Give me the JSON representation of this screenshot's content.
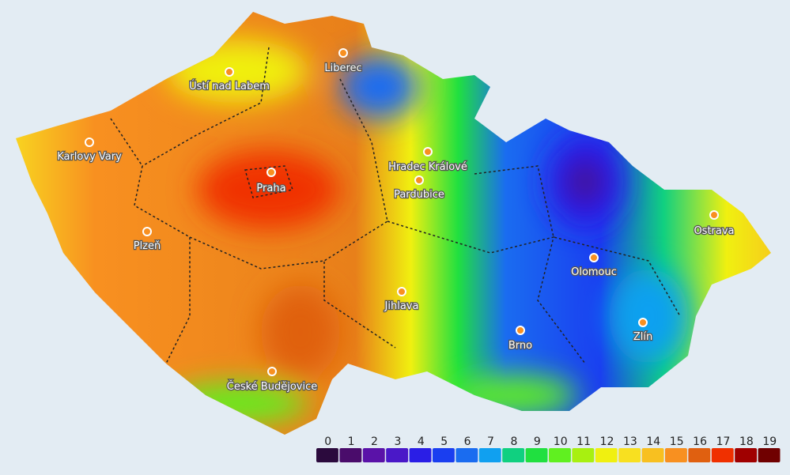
{
  "cities": [
    {
      "name": "Liberec"
    },
    {
      "name": "Ústí nad Labem"
    },
    {
      "name": "Karlovy Vary"
    },
    {
      "name": "Praha"
    },
    {
      "name": "Hradec Králové"
    },
    {
      "name": "Pardubice"
    },
    {
      "name": "Plzeň"
    },
    {
      "name": "Jihlava"
    },
    {
      "name": "Brno"
    },
    {
      "name": "Olomouc"
    },
    {
      "name": "Ostrava"
    },
    {
      "name": "Zlín"
    },
    {
      "name": "České Budějovice"
    }
  ],
  "legend": {
    "items": [
      {
        "value": 0,
        "color": "#2b0a3d"
      },
      {
        "value": 1,
        "color": "#4a0c6b"
      },
      {
        "value": 2,
        "color": "#5a12a8"
      },
      {
        "value": 3,
        "color": "#4a18c8"
      },
      {
        "value": 4,
        "color": "#2a1ee6"
      },
      {
        "value": 5,
        "color": "#1a3ef0"
      },
      {
        "value": 6,
        "color": "#1a6cf0"
      },
      {
        "value": 7,
        "color": "#10a0f0"
      },
      {
        "value": 8,
        "color": "#10d080"
      },
      {
        "value": 9,
        "color": "#20e040"
      },
      {
        "value": 10,
        "color": "#60f020"
      },
      {
        "value": 11,
        "color": "#a8f010"
      },
      {
        "value": 12,
        "color": "#f0f010"
      },
      {
        "value": 13,
        "color": "#f8e020"
      },
      {
        "value": 14,
        "color": "#f8c020"
      },
      {
        "value": 15,
        "color": "#f89020"
      },
      {
        "value": 16,
        "color": "#e06010"
      },
      {
        "value": 17,
        "color": "#f03000"
      },
      {
        "value": 18,
        "color": "#a00000"
      },
      {
        "value": 19,
        "color": "#700000"
      }
    ]
  }
}
